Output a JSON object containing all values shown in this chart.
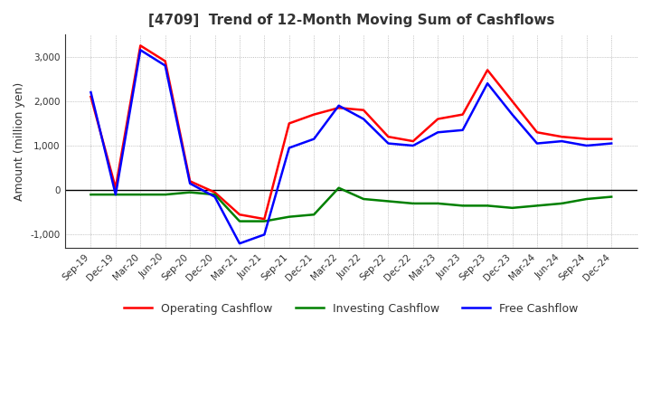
{
  "title": "[4709]  Trend of 12-Month Moving Sum of Cashflows",
  "ylabel": "Amount (million yen)",
  "ylim": [
    -1300,
    3500
  ],
  "yticks": [
    -1000,
    0,
    1000,
    2000,
    3000
  ],
  "background_color": "#ffffff",
  "plot_bg_color": "#ffffff",
  "grid_color": "#aaaaaa",
  "x_labels": [
    "Sep-19",
    "Dec-19",
    "Mar-20",
    "Jun-20",
    "Sep-20",
    "Dec-20",
    "Mar-21",
    "Jun-21",
    "Sep-21",
    "Dec-21",
    "Mar-22",
    "Jun-22",
    "Sep-22",
    "Dec-22",
    "Mar-23",
    "Jun-23",
    "Sep-23",
    "Dec-23",
    "Mar-24",
    "Jun-24",
    "Sep-24",
    "Dec-24"
  ],
  "operating_cashflow": [
    2100,
    50,
    3250,
    2900,
    200,
    -50,
    -550,
    -650,
    1500,
    1700,
    1850,
    1800,
    1200,
    1100,
    1600,
    1700,
    2700,
    2000,
    1300,
    1200,
    1150,
    1150
  ],
  "investing_cashflow": [
    -100,
    -100,
    -100,
    -100,
    -50,
    -100,
    -700,
    -700,
    -600,
    -550,
    50,
    -200,
    -250,
    -300,
    -300,
    -350,
    -350,
    -400,
    -350,
    -300,
    -200,
    -150
  ],
  "free_cashflow": [
    2200,
    -100,
    3150,
    2800,
    150,
    -150,
    -1200,
    -1000,
    950,
    1150,
    1900,
    1600,
    1050,
    1000,
    1300,
    1350,
    2400,
    1700,
    1050,
    1100,
    1000,
    1050
  ],
  "operating_color": "#ff0000",
  "investing_color": "#008000",
  "free_color": "#0000ff",
  "line_width": 1.8
}
